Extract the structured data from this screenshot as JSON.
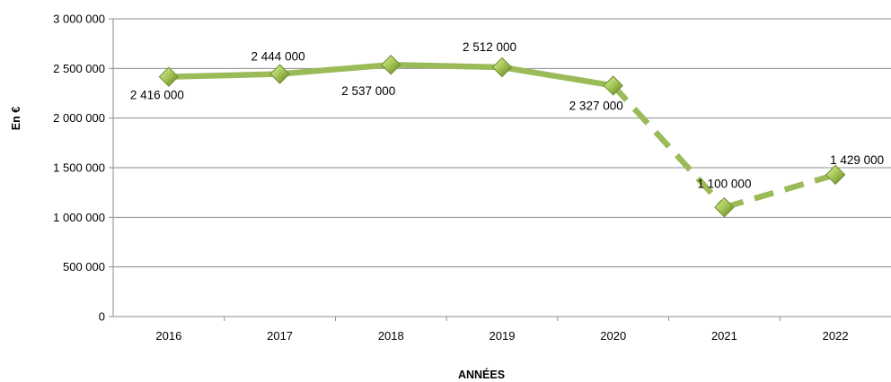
{
  "chart_data": {
    "type": "line",
    "title": "",
    "xlabel": "ANNÉES",
    "ylabel": "En €",
    "categories": [
      "2016",
      "2017",
      "2018",
      "2019",
      "2020",
      "2021",
      "2022"
    ],
    "ylim": [
      0,
      3000000
    ],
    "yticks": [
      0,
      500000,
      1000000,
      1500000,
      2000000,
      2500000,
      3000000
    ],
    "ytick_labels": [
      "0",
      "500 000",
      "1 000 000",
      "1 500 000",
      "2 000 000",
      "2 500 000",
      "3 000 000"
    ],
    "grid": true,
    "legend": "none",
    "series": [
      {
        "values": [
          2416000,
          2444000,
          2537000,
          2512000,
          2327000,
          1100000,
          1429000
        ],
        "labels": [
          "2 416 000",
          "2 444 000",
          "2 537 000",
          "2 512 000",
          "2 327 000",
          "1 100 000",
          "1 429 000"
        ],
        "line_style": [
          "solid",
          "solid",
          "solid",
          "solid",
          "dashed",
          "dashed"
        ],
        "color": "#9bbb59",
        "marker": "diamond"
      }
    ]
  }
}
